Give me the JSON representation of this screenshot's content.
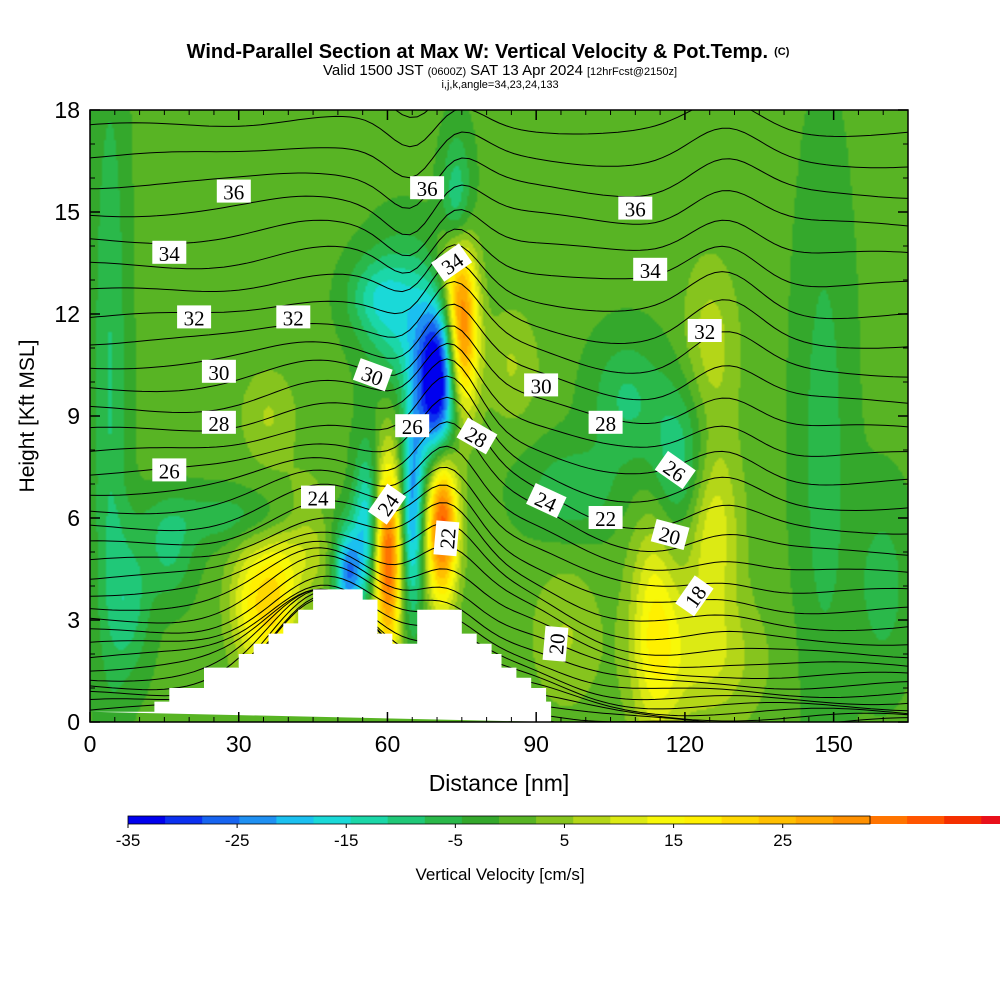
{
  "title": {
    "main": "Wind-Parallel Section at Max W: Vertical Velocity & Pot.Temp.",
    "main_mark": "(C)",
    "valid_prefix": "Valid 1500 JST",
    "valid_z": "(0600Z)",
    "valid_date": "SAT 13 Apr 2024",
    "valid_fcst": "[12hrFcst@2150z]",
    "params": "i,j,k,angle=34,23,24,133"
  },
  "chart_data": {
    "type": "heatmap",
    "xlabel": "Distance [nm]",
    "ylabel": "Height [Kft MSL]",
    "xlim": [
      0,
      165
    ],
    "ylim": [
      0,
      18
    ],
    "x_ticks": [
      0,
      30,
      60,
      90,
      120,
      150
    ],
    "y_ticks": [
      0,
      3,
      6,
      9,
      12,
      15,
      18
    ],
    "colorbar": {
      "label": "Vertical Velocity [cm/s]",
      "min": -35,
      "max": 33,
      "step": 3.4,
      "tick_values": [
        -35,
        -25,
        -15,
        -5,
        5,
        15,
        25
      ],
      "colors": [
        "#0000ee",
        "#0b30f0",
        "#1764f0",
        "#1f90f2",
        "#1bc0f0",
        "#1ad9d8",
        "#1bd7a8",
        "#20c878",
        "#2ab84a",
        "#34a82c",
        "#58b424",
        "#86c41e",
        "#b4d618",
        "#dcea14",
        "#f8f808",
        "#fff000",
        "#ffd800",
        "#ffbf00",
        "#ffa800",
        "#ff9000",
        "#ff7400",
        "#ff5500",
        "#f43000",
        "#e8101a",
        "#c8084a",
        "#a4086e",
        "#820a86",
        "#5e0c98"
      ]
    },
    "theta_labels": [
      {
        "text": "36",
        "x": 29,
        "y": 15.6,
        "angle": 0
      },
      {
        "text": "36",
        "x": 68,
        "y": 15.7,
        "angle": 0
      },
      {
        "text": "36",
        "x": 110,
        "y": 15.1,
        "angle": 0
      },
      {
        "text": "34",
        "x": 16,
        "y": 13.8,
        "angle": 0
      },
      {
        "text": "34",
        "x": 73,
        "y": 13.5,
        "angle": -35
      },
      {
        "text": "34",
        "x": 113,
        "y": 13.3,
        "angle": 0
      },
      {
        "text": "32",
        "x": 21,
        "y": 11.9,
        "angle": 0
      },
      {
        "text": "32",
        "x": 41,
        "y": 11.9,
        "angle": 0
      },
      {
        "text": "32",
        "x": 124,
        "y": 11.5,
        "angle": 0
      },
      {
        "text": "30",
        "x": 26,
        "y": 10.3,
        "angle": 0
      },
      {
        "text": "30",
        "x": 57,
        "y": 10.2,
        "angle": 20
      },
      {
        "text": "30",
        "x": 91,
        "y": 9.9,
        "angle": 0
      },
      {
        "text": "28",
        "x": 26,
        "y": 8.8,
        "angle": 0
      },
      {
        "text": "28",
        "x": 78,
        "y": 8.4,
        "angle": 30
      },
      {
        "text": "28",
        "x": 104,
        "y": 8.8,
        "angle": 0
      },
      {
        "text": "26",
        "x": 16,
        "y": 7.4,
        "angle": 0
      },
      {
        "text": "26",
        "x": 65,
        "y": 8.7,
        "angle": 0
      },
      {
        "text": "26",
        "x": 118,
        "y": 7.4,
        "angle": 35
      },
      {
        "text": "24",
        "x": 46,
        "y": 6.6,
        "angle": 0
      },
      {
        "text": "24",
        "x": 60,
        "y": 6.4,
        "angle": -55
      },
      {
        "text": "24",
        "x": 92,
        "y": 6.5,
        "angle": 25
      },
      {
        "text": "22",
        "x": 72,
        "y": 5.4,
        "angle": -85
      },
      {
        "text": "22",
        "x": 104,
        "y": 6.0,
        "angle": 0
      },
      {
        "text": "20",
        "x": 117,
        "y": 5.5,
        "angle": 15
      },
      {
        "text": "20",
        "x": 94,
        "y": 2.3,
        "angle": -85
      },
      {
        "text": "18",
        "x": 122,
        "y": 3.7,
        "angle": -55
      }
    ],
    "terrain": [
      [
        0,
        0.3
      ],
      [
        13,
        0.3
      ],
      [
        13,
        0.6
      ],
      [
        16,
        0.6
      ],
      [
        16,
        1.0
      ],
      [
        23,
        1.0
      ],
      [
        23,
        1.6
      ],
      [
        30,
        1.6
      ],
      [
        30,
        2.0
      ],
      [
        33,
        2.0
      ],
      [
        33,
        2.3
      ],
      [
        36,
        2.3
      ],
      [
        36,
        2.6
      ],
      [
        39,
        2.6
      ],
      [
        39,
        2.9
      ],
      [
        42,
        2.9
      ],
      [
        42,
        3.3
      ],
      [
        45,
        3.3
      ],
      [
        45,
        3.9
      ],
      [
        55,
        3.9
      ],
      [
        55,
        3.6
      ],
      [
        58,
        3.6
      ],
      [
        58,
        2.6
      ],
      [
        61,
        2.6
      ],
      [
        61,
        2.3
      ],
      [
        66,
        2.3
      ],
      [
        66,
        3.3
      ],
      [
        75,
        3.3
      ],
      [
        75,
        2.6
      ],
      [
        78,
        2.6
      ],
      [
        78,
        2.3
      ],
      [
        81,
        2.3
      ],
      [
        81,
        2.0
      ],
      [
        83,
        2.0
      ],
      [
        83,
        1.6
      ],
      [
        86,
        1.6
      ],
      [
        86,
        1.3
      ],
      [
        89,
        1.3
      ],
      [
        89,
        1.0
      ],
      [
        92,
        1.0
      ],
      [
        92,
        0.6
      ],
      [
        93,
        0.6
      ],
      [
        93,
        0
      ]
    ],
    "w_features": [
      {
        "x": 75,
        "y": 11.5,
        "sx": 2.2,
        "sy": 1.8,
        "v": 36
      },
      {
        "x": 73,
        "y": 13.3,
        "sx": 2.5,
        "sy": 1.0,
        "v": 12
      },
      {
        "x": 71,
        "y": 5.9,
        "sx": 2.2,
        "sy": 1.6,
        "v": 40
      },
      {
        "x": 60,
        "y": 4.8,
        "sx": 2.0,
        "sy": 2.0,
        "v": 38
      },
      {
        "x": 65,
        "y": 6.2,
        "sx": 1.6,
        "sy": 2.2,
        "v": -22
      },
      {
        "x": 56,
        "y": 5.8,
        "sx": 2.0,
        "sy": 1.6,
        "v": -18
      },
      {
        "x": 70,
        "y": 9.8,
        "sx": 3.0,
        "sy": 1.7,
        "v": -40
      },
      {
        "x": 74,
        "y": 14.8,
        "sx": 2.2,
        "sy": 1.6,
        "v": -14
      },
      {
        "x": 52,
        "y": 4.4,
        "sx": 2.0,
        "sy": 0.9,
        "v": -24
      },
      {
        "x": 63,
        "y": 12.0,
        "sx": 5,
        "sy": 1.5,
        "v": -14
      },
      {
        "x": 57,
        "y": 12.5,
        "sx": 4,
        "sy": 0.8,
        "v": -8
      },
      {
        "x": 120,
        "y": 7.5,
        "sx": 5,
        "sy": 1.8,
        "v": -14
      },
      {
        "x": 108,
        "y": 9.5,
        "sx": 5,
        "sy": 1.3,
        "v": -8
      },
      {
        "x": 97,
        "y": 6.8,
        "sx": 7,
        "sy": 1.0,
        "v": -7
      },
      {
        "x": 125,
        "y": 6.0,
        "sx": 4,
        "sy": 2.0,
        "v": 16
      },
      {
        "x": 125,
        "y": 11.0,
        "sx": 4,
        "sy": 1.8,
        "v": 8
      },
      {
        "x": 114,
        "y": 3.0,
        "sx": 3.5,
        "sy": 2.5,
        "v": 15
      },
      {
        "x": 124,
        "y": 1.8,
        "sx": 8,
        "sy": 1.4,
        "v": 9
      },
      {
        "x": 33,
        "y": 3.5,
        "sx": 3.5,
        "sy": 1.4,
        "v": 15
      },
      {
        "x": 38,
        "y": 3.5,
        "sx": 3.0,
        "sy": 1.6,
        "v": 14
      },
      {
        "x": 44,
        "y": 5.4,
        "sx": 3.5,
        "sy": 1.2,
        "v": 9
      },
      {
        "x": 31,
        "y": 6.0,
        "sx": 12,
        "sy": 0.6,
        "v": -7
      },
      {
        "x": 16,
        "y": 5.0,
        "sx": 3.5,
        "sy": 1.0,
        "v": -8
      },
      {
        "x": 4,
        "y": 10.0,
        "sx": 2.5,
        "sy": 7.0,
        "v": -8
      },
      {
        "x": 8,
        "y": 3.5,
        "sx": 3.0,
        "sy": 1.5,
        "v": -9
      },
      {
        "x": 36,
        "y": 9.0,
        "sx": 4,
        "sy": 1.0,
        "v": 6
      },
      {
        "x": 148,
        "y": 8.0,
        "sx": 4,
        "sy": 6.0,
        "v": -6
      },
      {
        "x": 160,
        "y": 4.0,
        "sx": 4,
        "sy": 2.0,
        "v": -6
      },
      {
        "x": 96,
        "y": 2.5,
        "sx": 5,
        "sy": 1.5,
        "v": 6
      },
      {
        "x": 85,
        "y": 10.5,
        "sx": 4,
        "sy": 1.2,
        "v": 6
      }
    ]
  }
}
